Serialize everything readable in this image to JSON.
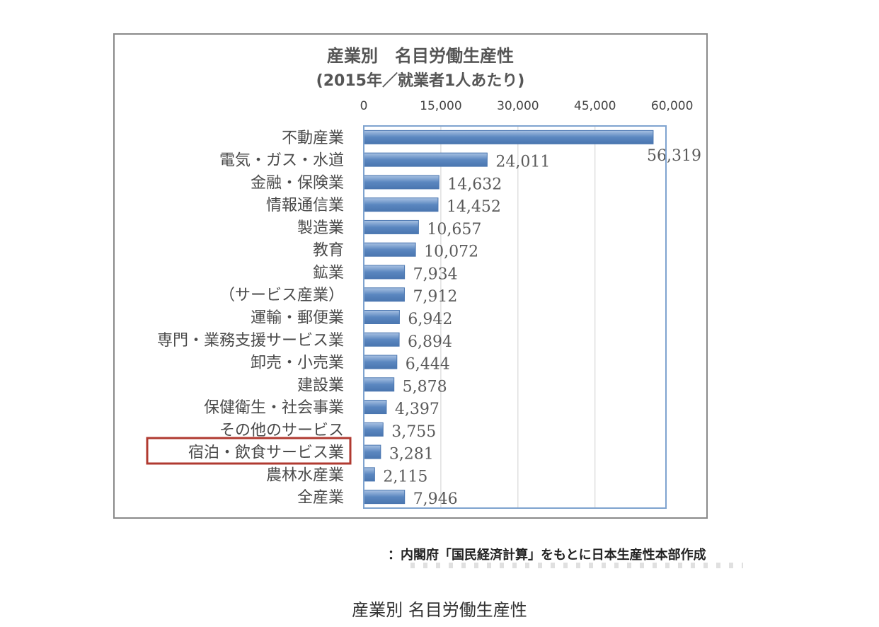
{
  "chart_data": {
    "type": "bar",
    "orientation": "horizontal",
    "title": "産業別　名目労働生産性",
    "subtitle": "(2015年／就業者1人あたり)",
    "xlim": [
      0,
      60000
    ],
    "x_ticks": [
      "0",
      "15,000",
      "30,000",
      "45,000",
      "60,000"
    ],
    "x_tick_values": [
      0,
      15000,
      30000,
      45000,
      60000
    ],
    "grid": "vertical",
    "categories": [
      "不動産業",
      "電気・ガス・水道",
      "金融・保険業",
      "情報通信業",
      "製造業",
      "教育",
      "鉱業",
      "（サービス産業）",
      "運輸・郵便業",
      "専門・業務支援サービス業",
      "卸売・小売業",
      "建設業",
      "保健衛生・社会事業",
      "その他のサービス",
      "宿泊・飲食サービス業",
      "農林水産業",
      "全産業"
    ],
    "values": [
      56319,
      24011,
      14632,
      14452,
      10657,
      10072,
      7934,
      7912,
      6942,
      6894,
      6444,
      5878,
      4397,
      3755,
      3281,
      2115,
      7946
    ],
    "value_labels": [
      "56,319",
      "24,011",
      "14,632",
      "14,452",
      "10,657",
      "10,072",
      "7,934",
      "7,912",
      "6,942",
      "6,894",
      "6,444",
      "5,878",
      "4,397",
      "3,755",
      "3,281",
      "2,115",
      "7,946"
    ],
    "highlighted_category": "宿泊・飲食サービス業",
    "colors": {
      "bar": "#5b87c0",
      "bar_light": "#a9c2e3",
      "highlight_box": "#b03a30",
      "plot_border": "#7fa3cf",
      "grid": "#d0d0d0"
    }
  },
  "source": "：内閣府「国民経済計算」をもとに日本生産性本部作成",
  "caption": "産業別 名目労働生産性"
}
